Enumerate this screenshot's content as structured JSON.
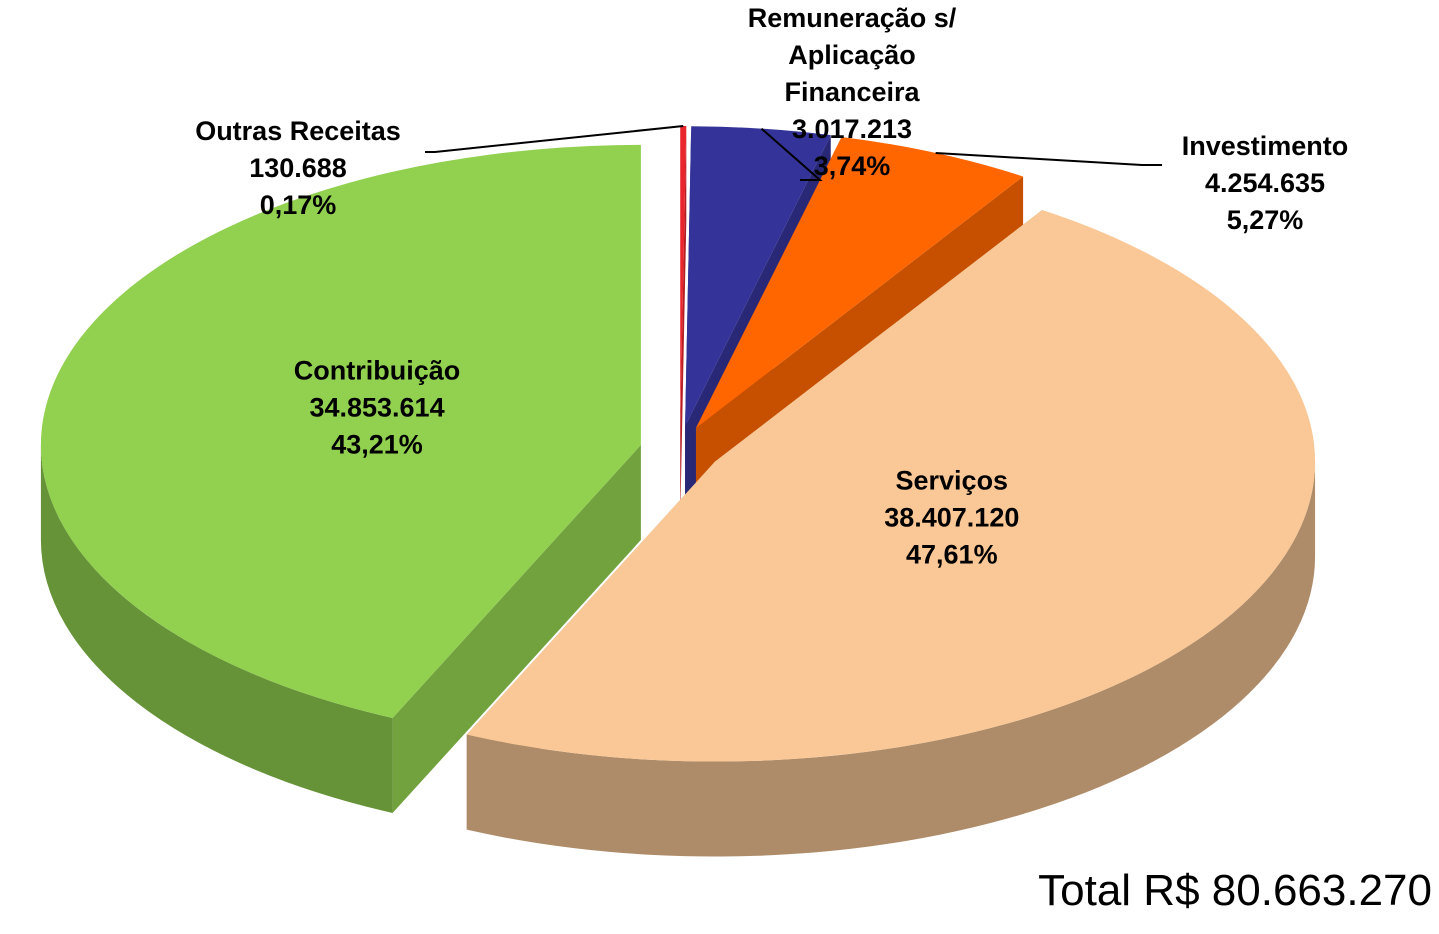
{
  "chart_data": {
    "type": "pie3d",
    "categories": [
      "Outras Receitas",
      "Remuneração s/ Aplicação Financeira",
      "Investimento",
      "Serviços",
      "Contribuição"
    ],
    "values": [
      130688,
      3017213,
      4254635,
      38407120,
      34853614
    ],
    "value_labels": [
      "130.688",
      "3.017.213",
      "4.254.635",
      "38.407.120",
      "34.853.614"
    ],
    "percent_labels": [
      "0,17%",
      "3,74%",
      "5,27%",
      "47,61%",
      "43,21%"
    ],
    "colors": [
      "#e8262c",
      "#333399",
      "#ff6600",
      "#fac896",
      "#92d050"
    ],
    "total_label": "Total R$ 80.663.270"
  }
}
